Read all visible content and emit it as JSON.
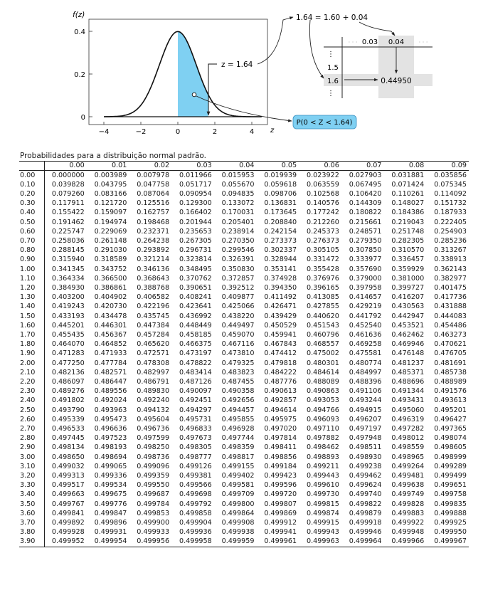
{
  "figure": {
    "y_axis_label": "f(z)",
    "y_ticks": [
      "0.4",
      "0.2",
      "0"
    ],
    "x_ticks": [
      "−4",
      "−2",
      "0",
      "2",
      "4"
    ],
    "x_axis_label": "z",
    "z_annotation": "z = 1.64",
    "decomposition": "1.64 = 1.60 + 0.04",
    "probability_label": "P(0 < Z < 1.64)",
    "shade_color": "#7fd0f2",
    "highlight_color": "#e3e3e3",
    "inset": {
      "col_ellipsis": "· · ·",
      "col_03": "0.03",
      "col_04": "0.04",
      "row_ellipsis": "⋮",
      "row_15": "1.5",
      "row_16": "1.6",
      "value": "0.44950"
    }
  },
  "caption": "Probabilidades para a distribuição normal padrão.",
  "table": {
    "headers": [
      "",
      "0.00",
      "0.01",
      "0.02",
      "0.03",
      "0.04",
      "0.05",
      "0.06",
      "0.07",
      "0.08",
      "0.09"
    ],
    "rows": [
      [
        "0.00",
        "0.000000",
        "0.003989",
        "0.007978",
        "0.011966",
        "0.015953",
        "0.019939",
        "0.023922",
        "0.027903",
        "0.031881",
        "0.035856"
      ],
      [
        "0.10",
        "0.039828",
        "0.043795",
        "0.047758",
        "0.051717",
        "0.055670",
        "0.059618",
        "0.063559",
        "0.067495",
        "0.071424",
        "0.075345"
      ],
      [
        "0.20",
        "0.079260",
        "0.083166",
        "0.087064",
        "0.090954",
        "0.094835",
        "0.098706",
        "0.102568",
        "0.106420",
        "0.110261",
        "0.114092"
      ],
      [
        "0.30",
        "0.117911",
        "0.121720",
        "0.125516",
        "0.129300",
        "0.133072",
        "0.136831",
        "0.140576",
        "0.144309",
        "0.148027",
        "0.151732"
      ],
      [
        "0.40",
        "0.155422",
        "0.159097",
        "0.162757",
        "0.166402",
        "0.170031",
        "0.173645",
        "0.177242",
        "0.180822",
        "0.184386",
        "0.187933"
      ],
      [
        "0.50",
        "0.191462",
        "0.194974",
        "0.198468",
        "0.201944",
        "0.205401",
        "0.208840",
        "0.212260",
        "0.215661",
        "0.219043",
        "0.222405"
      ],
      [
        "0.60",
        "0.225747",
        "0.229069",
        "0.232371",
        "0.235653",
        "0.238914",
        "0.242154",
        "0.245373",
        "0.248571",
        "0.251748",
        "0.254903"
      ],
      [
        "0.70",
        "0.258036",
        "0.261148",
        "0.264238",
        "0.267305",
        "0.270350",
        "0.273373",
        "0.276373",
        "0.279350",
        "0.282305",
        "0.285236"
      ],
      [
        "0.80",
        "0.288145",
        "0.291030",
        "0.293892",
        "0.296731",
        "0.299546",
        "0.302337",
        "0.305105",
        "0.307850",
        "0.310570",
        "0.313267"
      ],
      [
        "0.90",
        "0.315940",
        "0.318589",
        "0.321214",
        "0.323814",
        "0.326391",
        "0.328944",
        "0.331472",
        "0.333977",
        "0.336457",
        "0.338913"
      ],
      [
        "1.00",
        "0.341345",
        "0.343752",
        "0.346136",
        "0.348495",
        "0.350830",
        "0.353141",
        "0.355428",
        "0.357690",
        "0.359929",
        "0.362143"
      ],
      [
        "1.10",
        "0.364334",
        "0.366500",
        "0.368643",
        "0.370762",
        "0.372857",
        "0.374928",
        "0.376976",
        "0.379000",
        "0.381000",
        "0.382977"
      ],
      [
        "1.20",
        "0.384930",
        "0.386861",
        "0.388768",
        "0.390651",
        "0.392512",
        "0.394350",
        "0.396165",
        "0.397958",
        "0.399727",
        "0.401475"
      ],
      [
        "1.30",
        "0.403200",
        "0.404902",
        "0.406582",
        "0.408241",
        "0.409877",
        "0.411492",
        "0.413085",
        "0.414657",
        "0.416207",
        "0.417736"
      ],
      [
        "1.40",
        "0.419243",
        "0.420730",
        "0.422196",
        "0.423641",
        "0.425066",
        "0.426471",
        "0.427855",
        "0.429219",
        "0.430563",
        "0.431888"
      ],
      [
        "1.50",
        "0.433193",
        "0.434478",
        "0.435745",
        "0.436992",
        "0.438220",
        "0.439429",
        "0.440620",
        "0.441792",
        "0.442947",
        "0.444083"
      ],
      [
        "1.60",
        "0.445201",
        "0.446301",
        "0.447384",
        "0.448449",
        "0.449497",
        "0.450529",
        "0.451543",
        "0.452540",
        "0.453521",
        "0.454486"
      ],
      [
        "1.70",
        "0.455435",
        "0.456367",
        "0.457284",
        "0.458185",
        "0.459070",
        "0.459941",
        "0.460796",
        "0.461636",
        "0.462462",
        "0.463273"
      ],
      [
        "1.80",
        "0.464070",
        "0.464852",
        "0.465620",
        "0.466375",
        "0.467116",
        "0.467843",
        "0.468557",
        "0.469258",
        "0.469946",
        "0.470621"
      ],
      [
        "1.90",
        "0.471283",
        "0.471933",
        "0.472571",
        "0.473197",
        "0.473810",
        "0.474412",
        "0.475002",
        "0.475581",
        "0.476148",
        "0.476705"
      ],
      [
        "2.00",
        "0.477250",
        "0.477784",
        "0.478308",
        "0.478822",
        "0.479325",
        "0.479818",
        "0.480301",
        "0.480774",
        "0.481237",
        "0.481691"
      ],
      [
        "2.10",
        "0.482136",
        "0.482571",
        "0.482997",
        "0.483414",
        "0.483823",
        "0.484222",
        "0.484614",
        "0.484997",
        "0.485371",
        "0.485738"
      ],
      [
        "2.20",
        "0.486097",
        "0.486447",
        "0.486791",
        "0.487126",
        "0.487455",
        "0.487776",
        "0.488089",
        "0.488396",
        "0.488696",
        "0.488989"
      ],
      [
        "2.30",
        "0.489276",
        "0.489556",
        "0.489830",
        "0.490097",
        "0.490358",
        "0.490613",
        "0.490863",
        "0.491106",
        "0.491344",
        "0.491576"
      ],
      [
        "2.40",
        "0.491802",
        "0.492024",
        "0.492240",
        "0.492451",
        "0.492656",
        "0.492857",
        "0.493053",
        "0.493244",
        "0.493431",
        "0.493613"
      ],
      [
        "2.50",
        "0.493790",
        "0.493963",
        "0.494132",
        "0.494297",
        "0.494457",
        "0.494614",
        "0.494766",
        "0.494915",
        "0.495060",
        "0.495201"
      ],
      [
        "2.60",
        "0.495339",
        "0.495473",
        "0.495604",
        "0.495731",
        "0.495855",
        "0.495975",
        "0.496093",
        "0.496207",
        "0.496319",
        "0.496427"
      ],
      [
        "2.70",
        "0.496533",
        "0.496636",
        "0.496736",
        "0.496833",
        "0.496928",
        "0.497020",
        "0.497110",
        "0.497197",
        "0.497282",
        "0.497365"
      ],
      [
        "2.80",
        "0.497445",
        "0.497523",
        "0.497599",
        "0.497673",
        "0.497744",
        "0.497814",
        "0.497882",
        "0.497948",
        "0.498012",
        "0.498074"
      ],
      [
        "2.90",
        "0.498134",
        "0.498193",
        "0.498250",
        "0.498305",
        "0.498359",
        "0.498411",
        "0.498462",
        "0.498511",
        "0.498559",
        "0.498605"
      ],
      [
        "3.00",
        "0.498650",
        "0.498694",
        "0.498736",
        "0.498777",
        "0.498817",
        "0.498856",
        "0.498893",
        "0.498930",
        "0.498965",
        "0.498999"
      ],
      [
        "3.10",
        "0.499032",
        "0.499065",
        "0.499096",
        "0.499126",
        "0.499155",
        "0.499184",
        "0.499211",
        "0.499238",
        "0.499264",
        "0.499289"
      ],
      [
        "3.20",
        "0.499313",
        "0.499336",
        "0.499359",
        "0.499381",
        "0.499402",
        "0.499423",
        "0.499443",
        "0.499462",
        "0.499481",
        "0.499499"
      ],
      [
        "3.30",
        "0.499517",
        "0.499534",
        "0.499550",
        "0.499566",
        "0.499581",
        "0.499596",
        "0.499610",
        "0.499624",
        "0.499638",
        "0.499651"
      ],
      [
        "3.40",
        "0.499663",
        "0.499675",
        "0.499687",
        "0.499698",
        "0.499709",
        "0.499720",
        "0.499730",
        "0.499740",
        "0.499749",
        "0.499758"
      ],
      [
        "3.50",
        "0.499767",
        "0.499776",
        "0.499784",
        "0.499792",
        "0.499800",
        "0.499807",
        "0.499815",
        "0.499822",
        "0.499828",
        "0.499835"
      ],
      [
        "3.60",
        "0.499841",
        "0.499847",
        "0.499853",
        "0.499858",
        "0.499864",
        "0.499869",
        "0.499874",
        "0.499879",
        "0.499883",
        "0.499888"
      ],
      [
        "3.70",
        "0.499892",
        "0.499896",
        "0.499900",
        "0.499904",
        "0.499908",
        "0.499912",
        "0.499915",
        "0.499918",
        "0.499922",
        "0.499925"
      ],
      [
        "3.80",
        "0.499928",
        "0.499931",
        "0.499933",
        "0.499936",
        "0.499938",
        "0.499941",
        "0.499943",
        "0.499946",
        "0.499948",
        "0.499950"
      ],
      [
        "3.90",
        "0.499952",
        "0.499954",
        "0.499956",
        "0.499958",
        "0.499959",
        "0.499961",
        "0.499963",
        "0.499964",
        "0.499966",
        "0.499967"
      ]
    ]
  }
}
